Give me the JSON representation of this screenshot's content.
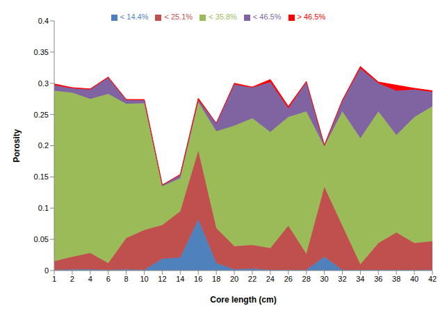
{
  "chart_data": {
    "type": "area",
    "stacked": true,
    "grid": false,
    "legend": "top",
    "x_label": "Core length (cm)",
    "y_label": "Porosity",
    "categories": [
      1,
      2,
      4,
      6,
      8,
      10,
      12,
      14,
      16,
      18,
      20,
      22,
      24,
      26,
      28,
      30,
      32,
      34,
      36,
      38,
      40,
      42
    ],
    "ylim": [
      0,
      0.4
    ],
    "yticks": [
      0,
      0.05,
      0.1,
      0.15,
      0.2,
      0.25,
      0.3,
      0.35,
      0.4
    ],
    "series": [
      {
        "name": "< 14.4%",
        "color": "#4f81bd",
        "values": [
          0.001,
          0.002,
          0.002,
          0.001,
          0.002,
          0.001,
          0.019,
          0.021,
          0.082,
          0.012,
          0.002,
          0.003,
          0.001,
          0.001,
          0.001,
          0.022,
          0.001,
          0.001,
          0.001,
          0.001,
          0.001,
          0.001
        ]
      },
      {
        "name": "< 25.1%",
        "color": "#c0504d",
        "values": [
          0.014,
          0.02,
          0.026,
          0.011,
          0.05,
          0.064,
          0.054,
          0.074,
          0.11,
          0.056,
          0.037,
          0.038,
          0.035,
          0.071,
          0.026,
          0.112,
          0.071,
          0.009,
          0.043,
          0.06,
          0.043,
          0.046
        ]
      },
      {
        "name": "< 35.8%",
        "color": "#9bbb59",
        "values": [
          0.273,
          0.263,
          0.247,
          0.271,
          0.215,
          0.203,
          0.062,
          0.053,
          0.078,
          0.155,
          0.193,
          0.203,
          0.186,
          0.174,
          0.228,
          0.065,
          0.183,
          0.202,
          0.211,
          0.156,
          0.202,
          0.216
        ]
      },
      {
        "name": "< 46.5%",
        "color": "#8064a2",
        "values": [
          0.009,
          0.007,
          0.015,
          0.026,
          0.006,
          0.005,
          0.002,
          0.005,
          0.003,
          0.013,
          0.066,
          0.049,
          0.08,
          0.014,
          0.047,
          0.001,
          0.017,
          0.112,
          0.045,
          0.071,
          0.044,
          0.023
        ]
      },
      {
        "name": "> 46.5%",
        "color": "#ff0000",
        "values": [
          0.002,
          0.001,
          0.001,
          0.001,
          0.001,
          0.001,
          0,
          0.001,
          0.003,
          0,
          0.002,
          0.001,
          0.004,
          0.003,
          0.001,
          0.001,
          0.001,
          0.003,
          0.002,
          0.009,
          0.002,
          0.002
        ]
      }
    ]
  }
}
